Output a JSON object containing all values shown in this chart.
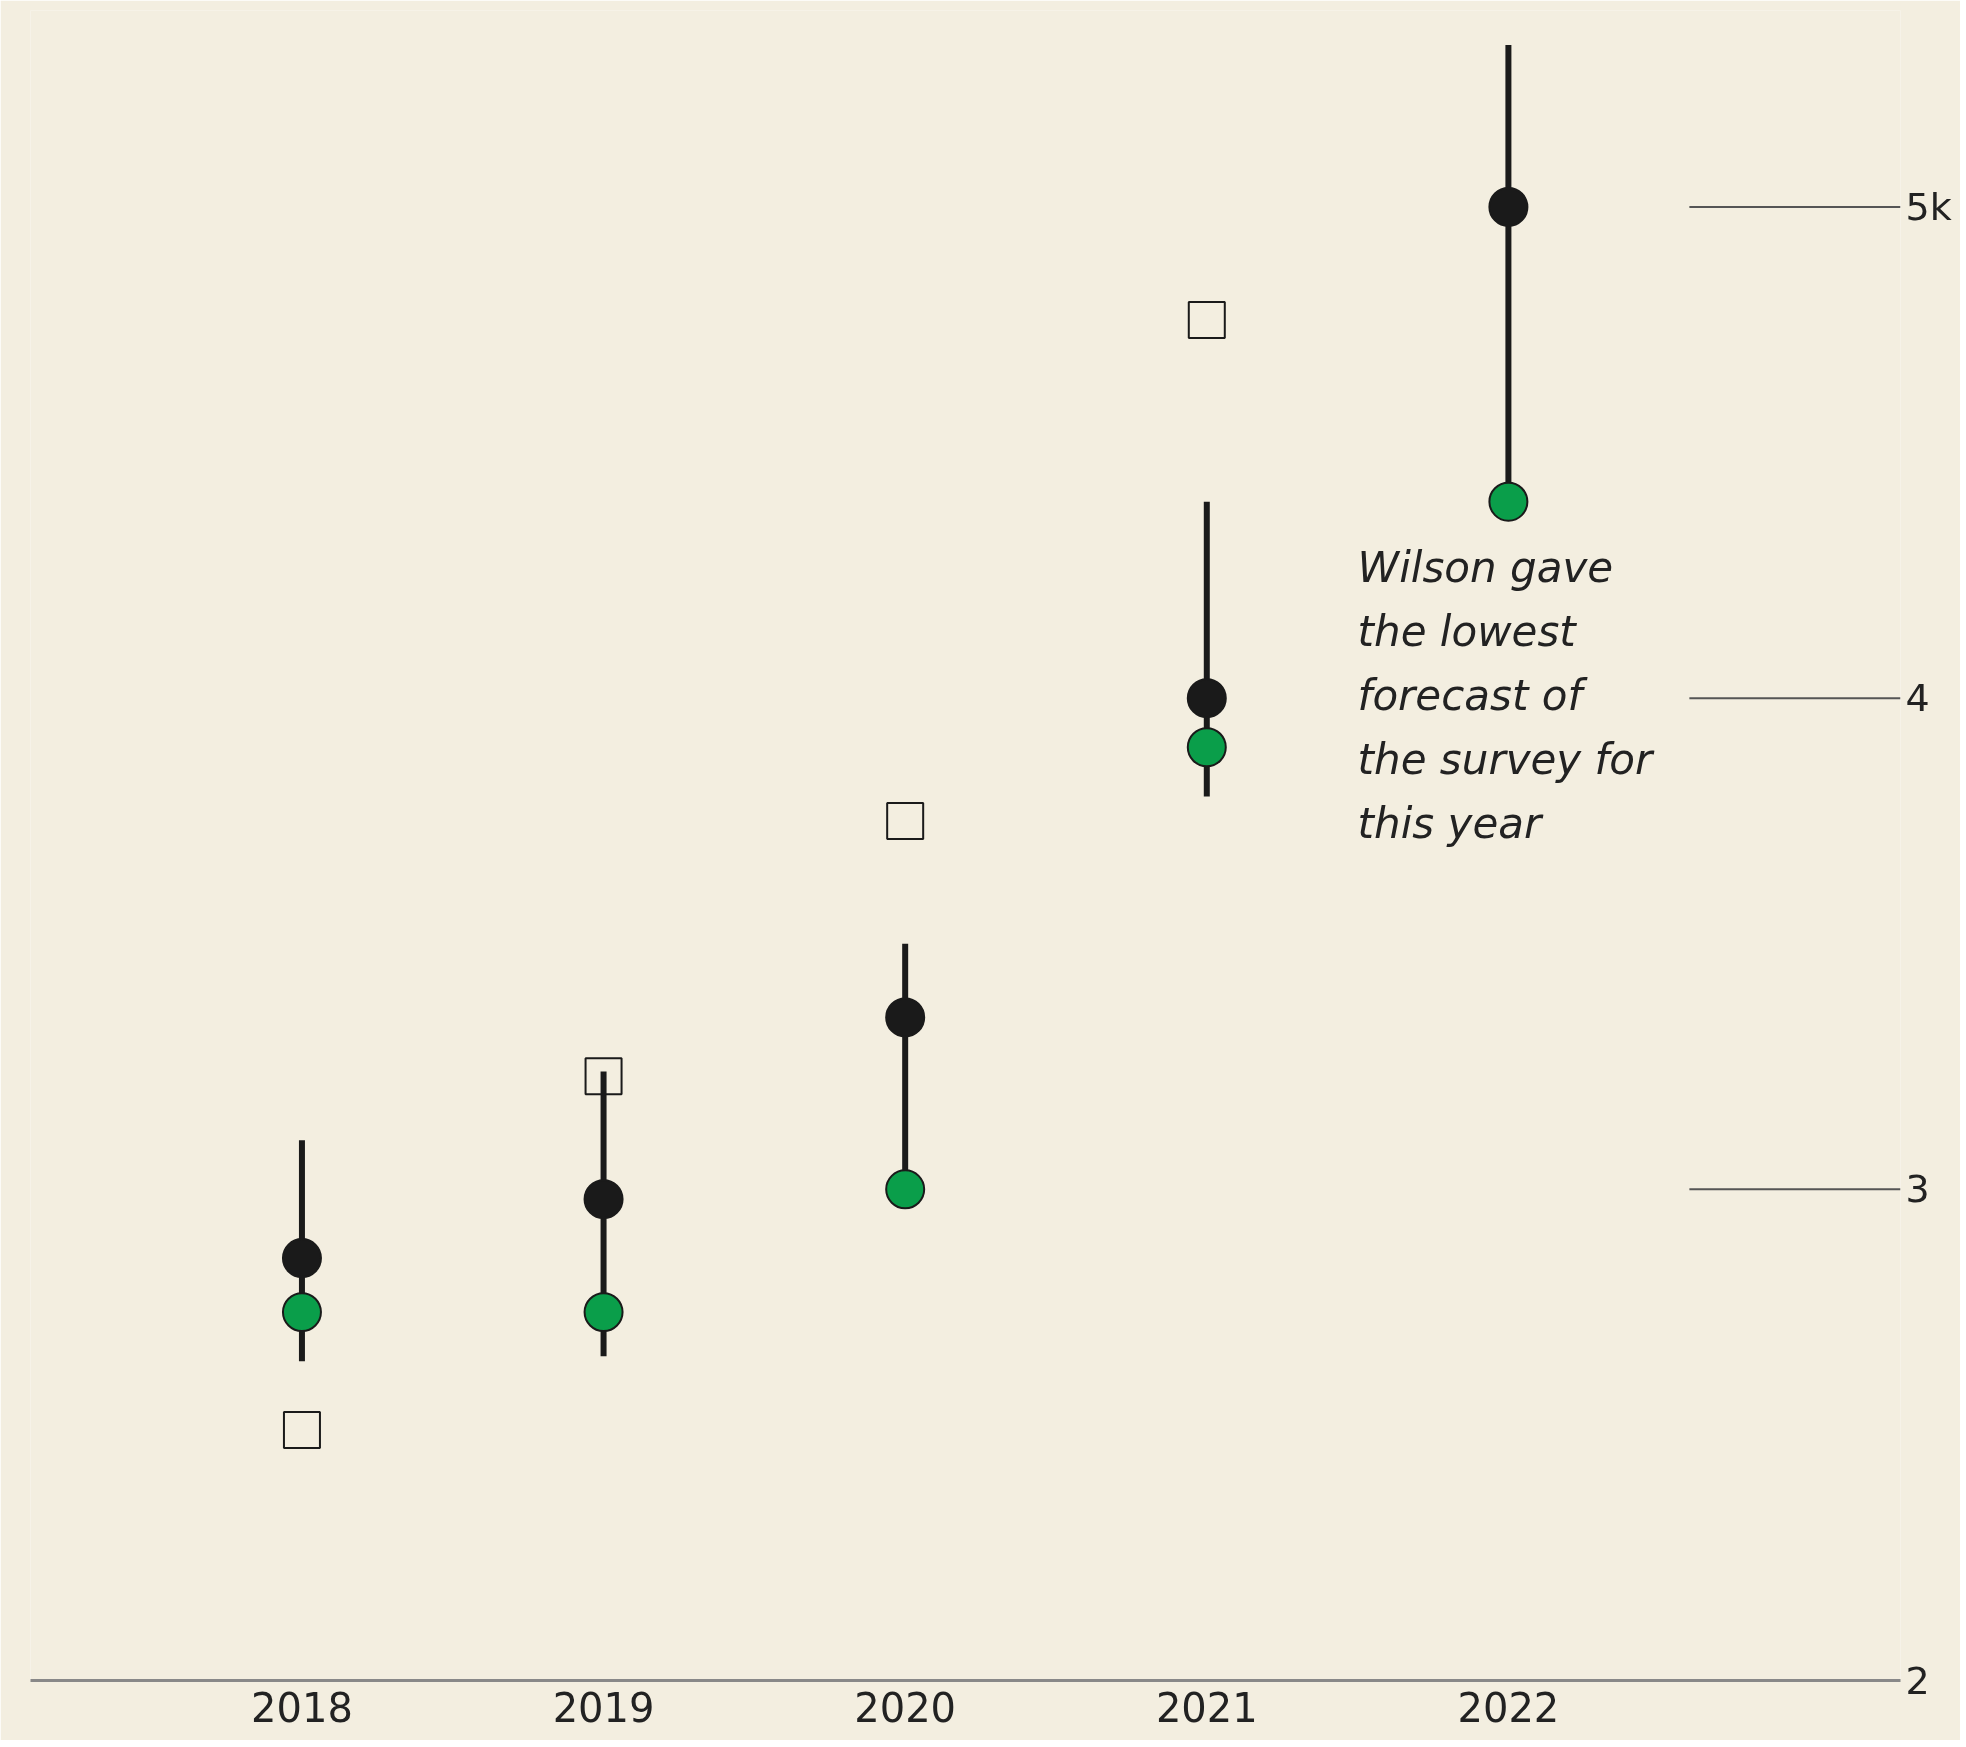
{
  "chart_data": {
    "type": "scatter",
    "categories": [
      "2018",
      "2019",
      "2020",
      "2021",
      "2022"
    ],
    "ylim": [
      2,
      5.4
    ],
    "yticks": [
      2,
      3,
      4,
      {
        "value": 5,
        "label": "5k"
      }
    ],
    "ref_lines": [
      {
        "axis": "y",
        "value": 3,
        "color": "#555555"
      },
      {
        "axis": "y",
        "value": 4,
        "color": "#555555"
      },
      {
        "axis": "y",
        "value": 5,
        "color": "#555555"
      }
    ],
    "series": [
      {
        "color": "#1a1a1a",
        "marker": "circle",
        "values": [
          2.86,
          2.98,
          3.35,
          4.0,
          5.0
        ]
      },
      {
        "color": "#0a9e4a",
        "marker": "circle",
        "values": [
          2.75,
          2.75,
          3.0,
          3.9,
          4.4
        ],
        "errors": [
          [
            2.65,
            3.1
          ],
          [
            2.66,
            3.24
          ],
          [
            3.0,
            3.5
          ],
          [
            3.8,
            4.4
          ],
          [
            4.4,
            5.33
          ]
        ]
      },
      {
        "color": "#1a1a1a",
        "marker": "square",
        "values": [
          2.51,
          3.23,
          3.75,
          4.77,
          null
        ]
      }
    ],
    "annotations": [
      {
        "text": "Wilson gave the lowest forecast of the survey for this year",
        "x": "2022",
        "y": 4.4
      }
    ]
  }
}
